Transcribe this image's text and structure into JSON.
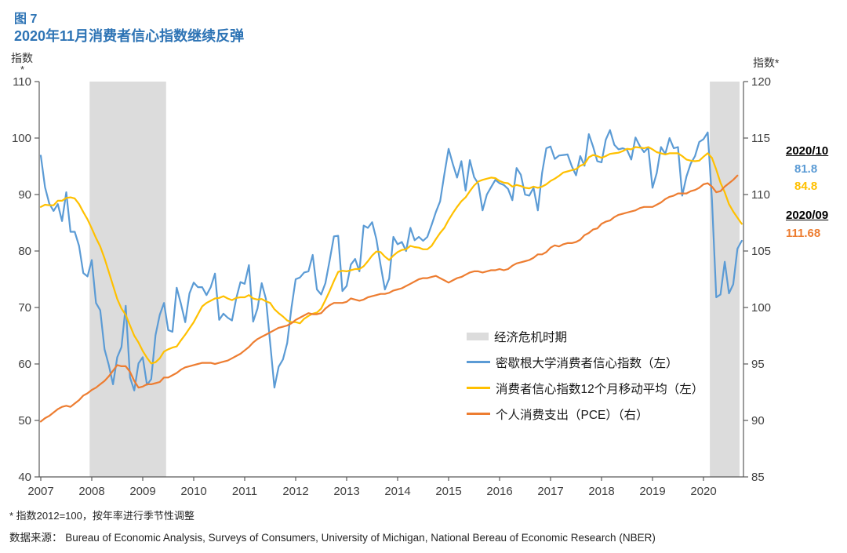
{
  "figure": {
    "number": "图 7",
    "title": "2020年11月消费者信心指数继续反弹"
  },
  "colors": {
    "blue": "#5B9BD5",
    "yellow": "#FFC000",
    "orange": "#ED7D31",
    "band": "#DCDCDC",
    "title_blue": "#2E74B5",
    "axis": "#595959",
    "tick_text": "#404040"
  },
  "axes": {
    "left_unit": "指数",
    "left_unit_star": "*",
    "right_unit": "指数*",
    "left_ticks": [
      110,
      100,
      90,
      80,
      70,
      60,
      50,
      40
    ],
    "right_ticks": [
      120,
      115,
      110,
      105,
      100,
      95,
      90,
      85
    ],
    "x_ticks": [
      2007,
      2008,
      2009,
      2010,
      2011,
      2012,
      2013,
      2014,
      2015,
      2016,
      2017,
      2018,
      2019,
      2020
    ]
  },
  "legend": {
    "items": [
      {
        "id": "recession",
        "type": "band",
        "label": "经济危机时期",
        "color": "#DCDCDC"
      },
      {
        "id": "michigan",
        "type": "line",
        "label": "密歇根大学消费者信心指数（左）",
        "color": "#5B9BD5"
      },
      {
        "id": "ma12",
        "type": "line",
        "label": "消费者信心指数12个月移动平均（左）",
        "color": "#FFC000"
      },
      {
        "id": "pce",
        "type": "line",
        "label": "个人消费支出（PCE）（右）",
        "color": "#ED7D31"
      }
    ]
  },
  "callouts": [
    {
      "date": "2020/10",
      "values": [
        {
          "text": "81.8",
          "series": "michigan"
        },
        {
          "text": "84.8",
          "series": "ma12"
        }
      ]
    },
    {
      "date": "2020/09",
      "values": [
        {
          "text": "111.68",
          "series": "pce"
        }
      ]
    }
  ],
  "footnotes": [
    "* 指数2012=100，按年率进行季节性调整",
    "数据来源： Bureau of Economic Analysis, Surveys of Consumers, University of Michigan, National Bereau of Economic Research (NBER)"
  ],
  "chart_data": {
    "type": "line",
    "title": "2020年11月消费者信心指数继续反弹",
    "x_start": "2007-01",
    "x_freq": "monthly",
    "x_year_ticks": [
      2007,
      2008,
      2009,
      2010,
      2011,
      2012,
      2013,
      2014,
      2015,
      2016,
      2017,
      2018,
      2019,
      2020
    ],
    "left_axis": {
      "label": "指数",
      "range": [
        40,
        110
      ],
      "tick_step": 10
    },
    "right_axis": {
      "label": "指数*",
      "range": [
        85,
        120
      ],
      "tick_step": 5
    },
    "grid": false,
    "legend_position": "inside-right-middle",
    "recession_bands": [
      {
        "from": "2007-12",
        "to": "2009-06"
      },
      {
        "from": "2020-02",
        "to": "2020-09"
      }
    ],
    "series": [
      {
        "id": "michigan",
        "name": "密歇根大学消费者信心指数（左）",
        "axis": "left",
        "color": "#5B9BD5",
        "latest": {
          "date": "2020/10",
          "value": 81.8
        },
        "values": [
          96.9,
          91.3,
          88.4,
          87.1,
          88.3,
          85.3,
          90.4,
          83.4,
          83.4,
          80.9,
          76.1,
          75.5,
          78.4,
          70.8,
          69.5,
          62.6,
          59.8,
          56.4,
          61.2,
          63.0,
          70.3,
          57.6,
          55.3,
          60.1,
          61.2,
          56.3,
          57.3,
          65.1,
          68.7,
          70.8,
          66.0,
          65.7,
          73.5,
          70.6,
          67.4,
          72.5,
          74.4,
          73.6,
          73.6,
          72.2,
          73.6,
          76.0,
          67.8,
          68.9,
          68.2,
          67.7,
          71.6,
          74.5,
          74.2,
          77.5,
          67.5,
          69.8,
          74.3,
          71.5,
          63.7,
          55.8,
          59.5,
          60.8,
          63.7,
          69.9,
          75.0,
          75.3,
          76.2,
          76.4,
          79.3,
          73.2,
          72.3,
          74.3,
          78.3,
          82.6,
          82.7,
          72.9,
          73.8,
          77.6,
          78.6,
          76.4,
          84.5,
          84.1,
          85.1,
          82.1,
          77.5,
          73.2,
          75.1,
          82.5,
          81.2,
          81.6,
          80.0,
          84.1,
          81.9,
          82.5,
          81.8,
          82.5,
          84.6,
          86.9,
          88.8,
          93.6,
          98.1,
          95.4,
          93.0,
          95.9,
          90.7,
          96.1,
          93.1,
          91.9,
          87.2,
          90.0,
          91.3,
          92.6,
          92.0,
          91.7,
          91.0,
          89.0,
          94.7,
          93.5,
          90.0,
          89.8,
          91.2,
          87.2,
          93.8,
          98.2,
          98.5,
          96.3,
          96.9,
          97.0,
          97.1,
          95.0,
          93.4,
          96.8,
          95.1,
          100.7,
          98.5,
          95.9,
          95.7,
          99.7,
          101.4,
          98.8,
          98.0,
          98.2,
          97.9,
          96.2,
          100.1,
          98.6,
          97.5,
          98.3,
          91.2,
          93.8,
          98.4,
          97.2,
          100.0,
          98.2,
          98.4,
          89.8,
          93.2,
          95.5,
          96.8,
          99.3,
          99.8,
          101.0,
          89.1,
          71.8,
          72.3,
          78.1,
          72.5,
          74.1,
          80.4,
          81.8
        ]
      },
      {
        "id": "ma12",
        "name": "消费者信心指数12个月移动平均（左）",
        "axis": "left",
        "color": "#FFC000",
        "latest": {
          "date": "2020/10",
          "value": 84.8
        },
        "values": [
          87.8,
          88.2,
          88.1,
          88.1,
          88.9,
          88.9,
          89.4,
          89.5,
          89.3,
          88.3,
          86.9,
          85.6,
          84.0,
          82.3,
          80.8,
          78.7,
          76.3,
          73.9,
          71.5,
          69.8,
          68.7,
          66.8,
          65.0,
          63.8,
          62.3,
          61.1,
          60.1,
          60.3,
          61.0,
          62.2,
          62.6,
          62.9,
          63.1,
          64.2,
          65.2,
          66.3,
          67.4,
          68.8,
          70.2,
          70.8,
          71.2,
          71.6,
          71.7,
          72.0,
          71.6,
          71.3,
          71.7,
          71.8,
          71.8,
          72.2,
          71.6,
          71.4,
          71.5,
          71.1,
          70.8,
          69.7,
          69.0,
          68.4,
          67.7,
          67.4,
          67.4,
          67.2,
          68.0,
          68.5,
          68.9,
          69.1,
          69.8,
          71.3,
          72.9,
          74.7,
          76.3,
          76.5,
          76.4,
          76.6,
          76.8,
          76.8,
          77.3,
          78.2,
          79.2,
          79.9,
          79.8,
          79.0,
          78.4,
          79.2,
          79.8,
          80.2,
          80.3,
          80.9,
          80.7,
          80.6,
          80.3,
          80.3,
          80.9,
          82.1,
          83.2,
          84.1,
          85.5,
          86.7,
          87.8,
          88.8,
          89.5,
          90.6,
          91.6,
          92.3,
          92.6,
          92.8,
          93.0,
          92.9,
          92.4,
          92.1,
          92.0,
          91.4,
          91.7,
          91.5,
          91.2,
          91.1,
          91.4,
          91.2,
          91.4,
          91.8,
          92.4,
          92.8,
          93.3,
          93.9,
          94.1,
          94.3,
          94.5,
          95.1,
          95.4,
          96.6,
          97.0,
          96.8,
          96.5,
          96.8,
          97.2,
          97.3,
          97.4,
          97.7,
          98.1,
          98.0,
          98.4,
          98.3,
          98.2,
          98.4,
          98.0,
          97.5,
          97.3,
          97.1,
          97.3,
          97.3,
          97.3,
          96.8,
          96.2,
          96.0,
          95.9,
          96.0,
          96.7,
          97.3,
          96.5,
          94.4,
          92.1,
          90.4,
          88.3,
          87.0,
          85.9,
          84.8
        ]
      },
      {
        "id": "pce",
        "name": "个人消费支出（PCE）（右）",
        "axis": "right",
        "color": "#ED7D31",
        "latest": {
          "date": "2020/09",
          "value": 111.68
        },
        "values": [
          89.9,
          90.2,
          90.4,
          90.7,
          91.0,
          91.2,
          91.3,
          91.2,
          91.5,
          91.8,
          92.2,
          92.4,
          92.7,
          92.9,
          93.2,
          93.5,
          93.9,
          94.4,
          94.9,
          94.8,
          94.8,
          94.3,
          93.5,
          92.9,
          93.0,
          93.2,
          93.2,
          93.3,
          93.4,
          93.8,
          93.8,
          94.0,
          94.2,
          94.5,
          94.7,
          94.8,
          94.9,
          95.0,
          95.1,
          95.1,
          95.1,
          95.0,
          95.1,
          95.2,
          95.3,
          95.5,
          95.7,
          95.9,
          96.2,
          96.5,
          96.9,
          97.2,
          97.4,
          97.6,
          97.8,
          98.0,
          98.2,
          98.3,
          98.4,
          98.6,
          98.9,
          99.1,
          99.3,
          99.5,
          99.4,
          99.4,
          99.5,
          99.9,
          100.2,
          100.4,
          100.4,
          100.4,
          100.5,
          100.8,
          100.7,
          100.6,
          100.7,
          100.9,
          101.0,
          101.1,
          101.2,
          101.2,
          101.3,
          101.5,
          101.6,
          101.7,
          101.9,
          102.1,
          102.3,
          102.5,
          102.6,
          102.6,
          102.7,
          102.8,
          102.6,
          102.4,
          102.2,
          102.4,
          102.6,
          102.7,
          102.9,
          103.1,
          103.2,
          103.2,
          103.1,
          103.2,
          103.3,
          103.3,
          103.4,
          103.3,
          103.4,
          103.7,
          103.9,
          104.0,
          104.1,
          104.2,
          104.4,
          104.7,
          104.7,
          104.9,
          105.3,
          105.5,
          105.4,
          105.6,
          105.7,
          105.7,
          105.8,
          106.0,
          106.4,
          106.6,
          106.9,
          107.0,
          107.4,
          107.6,
          107.7,
          108.0,
          108.2,
          108.3,
          108.4,
          108.5,
          108.6,
          108.8,
          108.9,
          108.9,
          108.9,
          109.1,
          109.3,
          109.6,
          109.8,
          109.9,
          110.1,
          110.1,
          110.1,
          110.3,
          110.4,
          110.6,
          110.9,
          111.0,
          110.7,
          110.2,
          110.3,
          110.7,
          111.0,
          111.3,
          111.68
        ]
      }
    ]
  }
}
